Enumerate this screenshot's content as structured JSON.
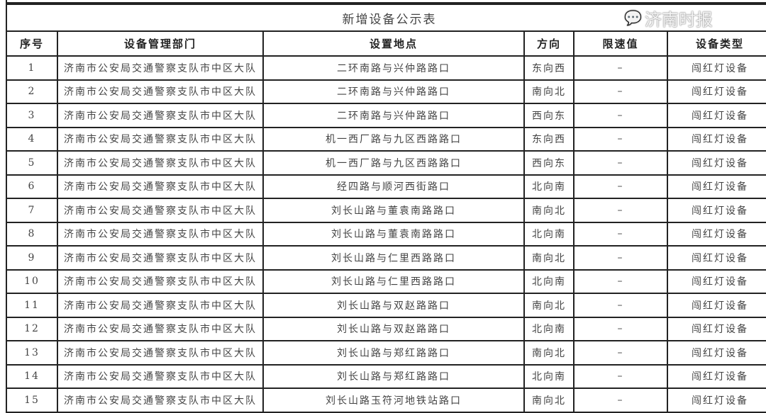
{
  "title": "新增设备公示表",
  "headers": [
    "序号",
    "设备管理部门",
    "设置地点",
    "方向",
    "限速值",
    "设备类型"
  ],
  "rows": [
    [
      "1",
      "济南市公安局交通警察支队市中区大队",
      "二环南路与兴仲路路口",
      "东向西",
      "–",
      "闯红灯设备"
    ],
    [
      "2",
      "济南市公安局交通警察支队市中区大队",
      "二环南路与兴仲路路口",
      "南向北",
      "–",
      "闯红灯设备"
    ],
    [
      "3",
      "济南市公安局交通警察支队市中区大队",
      "二环南路与兴仲路路口",
      "西向东",
      "–",
      "闯红灯设备"
    ],
    [
      "4",
      "济南市公安局交通警察支队市中区大队",
      "机一西厂路与九区西路路口",
      "东向西",
      "–",
      "闯红灯设备"
    ],
    [
      "5",
      "济南市公安局交通警察支队市中区大队",
      "机一西厂路与九区西路路口",
      "西向东",
      "–",
      "闯红灯设备"
    ],
    [
      "6",
      "济南市公安局交通警察支队市中区大队",
      "经四路与顺河西街路口",
      "北向南",
      "–",
      "闯红灯设备"
    ],
    [
      "7",
      "济南市公安局交通警察支队市中区大队",
      "刘长山路与董袁南路路口",
      "南向北",
      "–",
      "闯红灯设备"
    ],
    [
      "8",
      "济南市公安局交通警察支队市中区大队",
      "刘长山路与董袁南路路口",
      "北向南",
      "–",
      "闯红灯设备"
    ],
    [
      "9",
      "济南市公安局交通警察支队市中区大队",
      "刘长山路与仁里西路路口",
      "南向北",
      "–",
      "闯红灯设备"
    ],
    [
      "10",
      "济南市公安局交通警察支队市中区大队",
      "刘长山路与仁里西路路口",
      "北向南",
      "–",
      "闯红灯设备"
    ],
    [
      "11",
      "济南市公安局交通警察支队市中区大队",
      "刘长山路与双赵路路口",
      "南向北",
      "–",
      "闯红灯设备"
    ],
    [
      "12",
      "济南市公安局交通警察支队市中区大队",
      "刘长山路与双赵路路口",
      "北向南",
      "–",
      "闯红灯设备"
    ],
    [
      "13",
      "济南市公安局交通警察支队市中区大队",
      "刘长山路与郑红路路口",
      "南向北",
      "–",
      "闯红灯设备"
    ],
    [
      "14",
      "济南市公安局交通警察支队市中区大队",
      "刘长山路与郑红路路口",
      "北向南",
      "–",
      "闯红灯设备"
    ],
    [
      "15",
      "济南市公安局交通警察支队市中区大队",
      "刘长山路玉符河地铁站路口",
      "南向北",
      "–",
      "闯红灯设备"
    ]
  ],
  "watermark": {
    "text": "济南时报",
    "icon": "wechat-icon"
  }
}
